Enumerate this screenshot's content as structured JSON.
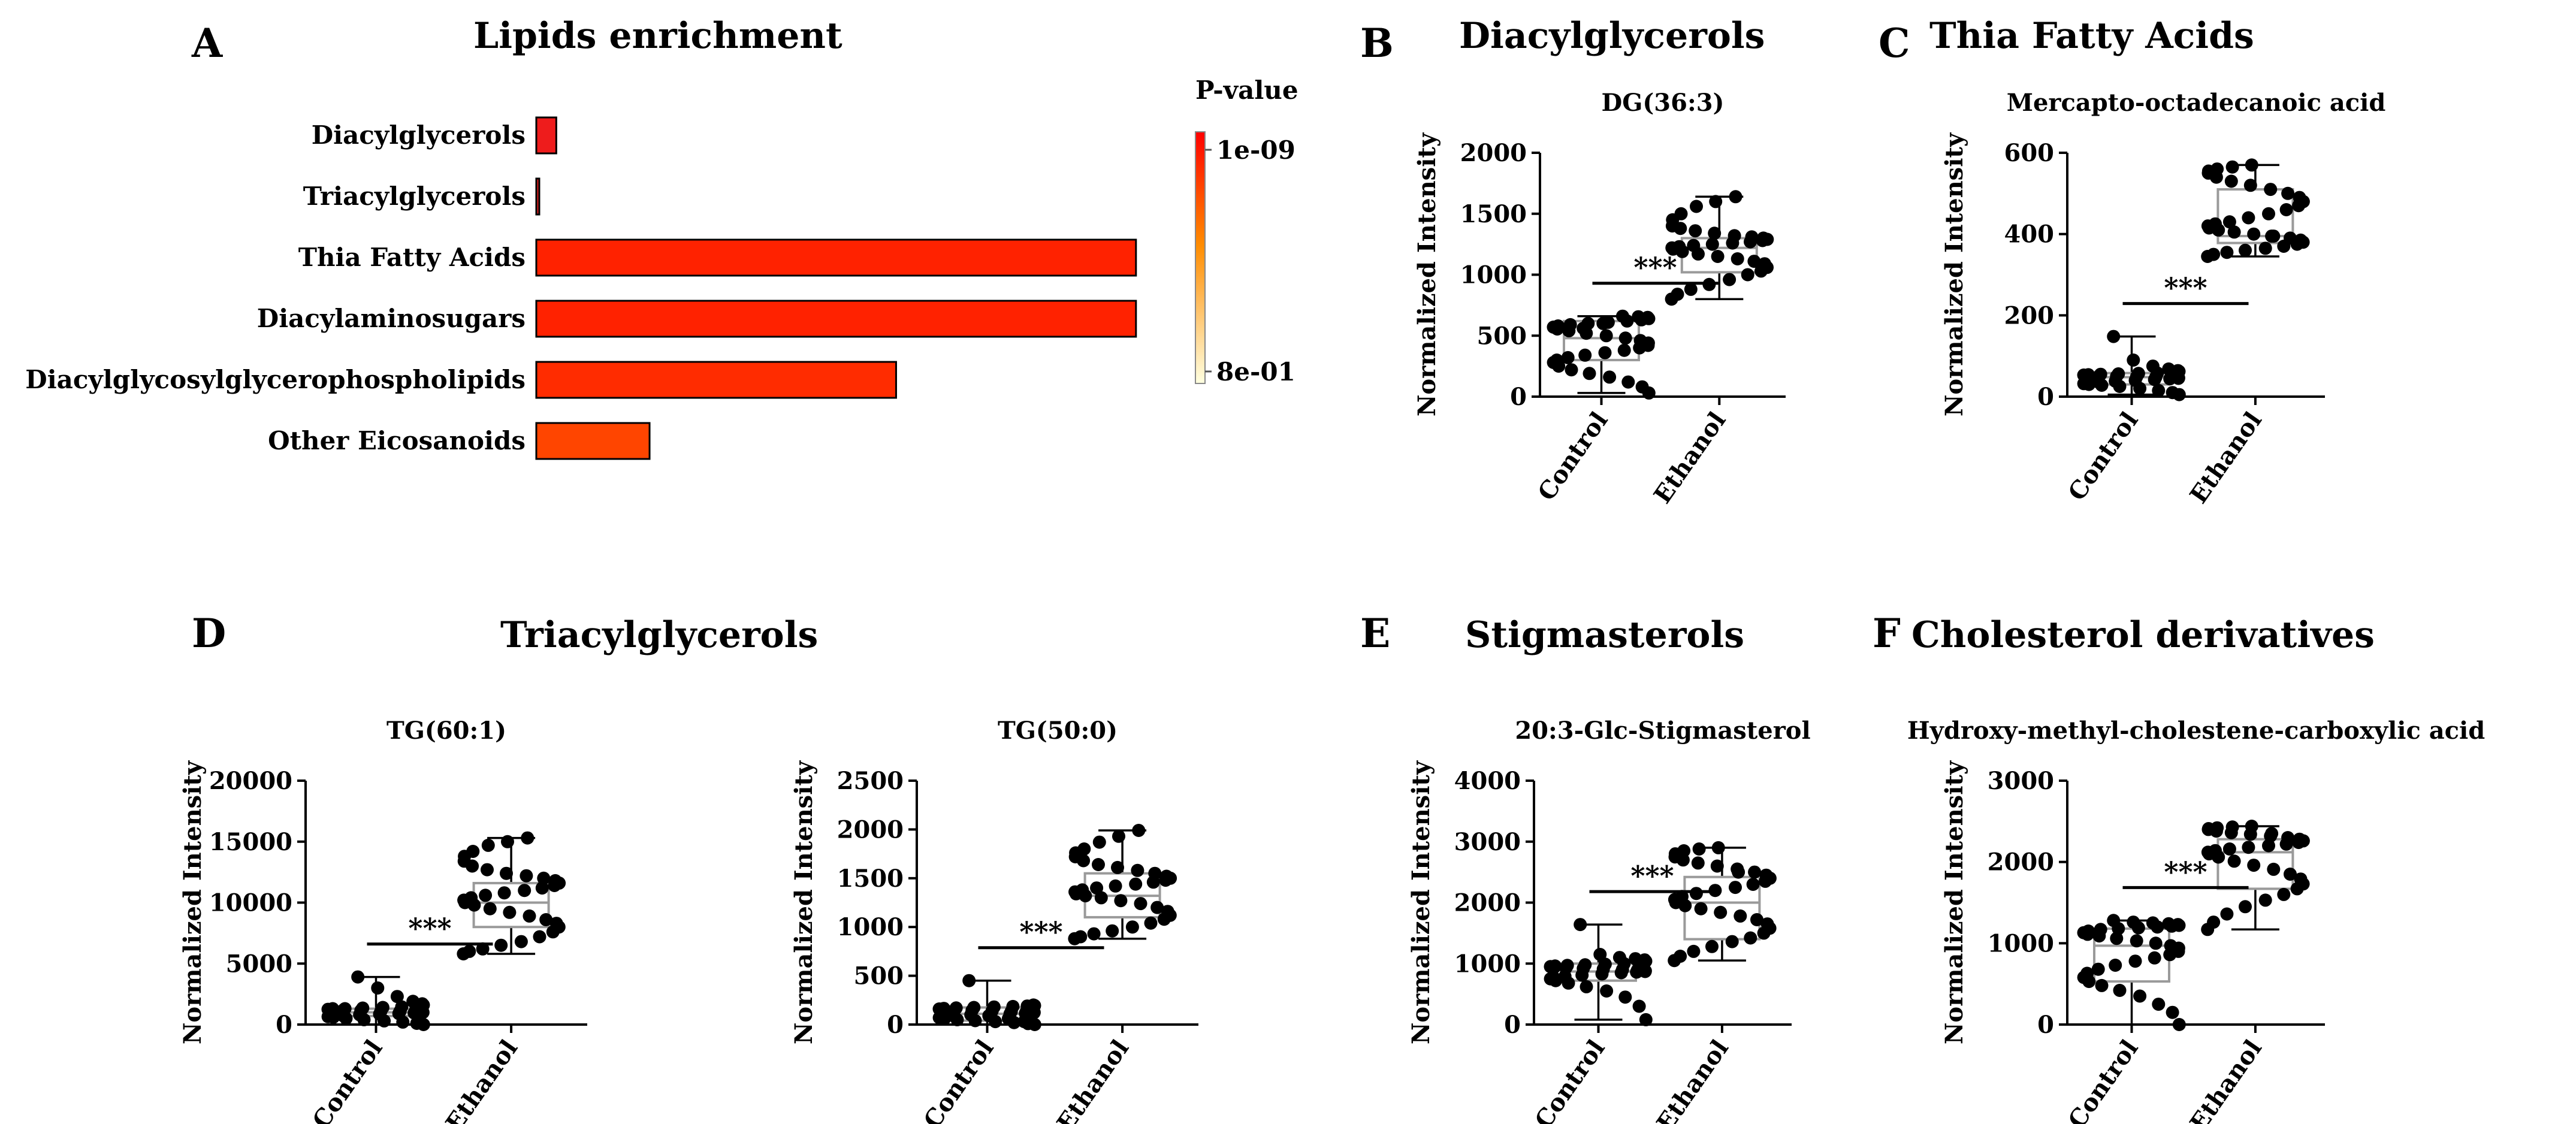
{
  "panels": [
    {
      "id": "A",
      "label": "A",
      "title": "Lipids enrichment"
    },
    {
      "id": "B",
      "label": "B",
      "title": "Diacylglycerols"
    },
    {
      "id": "C",
      "label": "C",
      "title": "Thia Fatty Acids"
    },
    {
      "id": "D",
      "label": "D",
      "title": "Triacylglycerols"
    },
    {
      "id": "E",
      "label": "E",
      "title": "Stigmasterols"
    },
    {
      "id": "F",
      "label": "F",
      "title": "Cholesterol derivatives"
    }
  ],
  "colors": {
    "high": "#ff0000",
    "mid": "#ff8c00",
    "low": "#ffffe0",
    "box": "#9a9a9a",
    "dot": "#000000"
  },
  "chart_data": [
    {
      "id": "A",
      "type": "bar",
      "orientation": "horizontal",
      "title": "Lipids enrichment",
      "categories": [
        "Diacylglycerols",
        "Triacylglycerols",
        "Thia Fatty Acids",
        "Diacylaminosugars",
        "Diacylglycosylglycerophospholipids",
        "Other Eicosanoids"
      ],
      "values": [
        1.5,
        0.2,
        45.0,
        45.0,
        27.0,
        8.5
      ],
      "xlim": [
        0,
        50
      ],
      "bar_colors": [
        "#ee1c1c",
        "#dd1f1f",
        "#ff2200",
        "#ff2200",
        "#ff2c00",
        "#ff4500"
      ],
      "legend": {
        "title": "P-value",
        "max_label": "1e-09",
        "min_label": "8e-01",
        "placement": "right"
      }
    },
    {
      "id": "B",
      "type": "box-scatter",
      "subtitle": "DG(36:3)",
      "ylabel": "Normalized Intensity",
      "categories": [
        "Control",
        "Ethanol"
      ],
      "ylim": [
        0,
        2000
      ],
      "yticks": [
        0,
        500,
        1000,
        1500,
        2000
      ],
      "boxes": [
        {
          "min": 30,
          "q1": 300,
          "median": 480,
          "q3": 620,
          "max": 660
        },
        {
          "min": 800,
          "q1": 1020,
          "median": 1220,
          "q3": 1300,
          "max": 1640
        }
      ],
      "points": [
        [
          30,
          80,
          120,
          160,
          190,
          220,
          250,
          280,
          300,
          320,
          340,
          360,
          380,
          400,
          420,
          440,
          460,
          480,
          500,
          520,
          540,
          555,
          570,
          580,
          590,
          600,
          610,
          620,
          630,
          640,
          650,
          655,
          660,
          600,
          560
        ],
        [
          800,
          840,
          880,
          920,
          960,
          1000,
          1030,
          1060,
          1090,
          1110,
          1130,
          1150,
          1170,
          1190,
          1210,
          1220,
          1230,
          1240,
          1250,
          1260,
          1270,
          1280,
          1290,
          1300,
          1310,
          1320,
          1340,
          1360,
          1380,
          1400,
          1450,
          1500,
          1560,
          1600,
          1640
        ]
      ],
      "significance": "***"
    },
    {
      "id": "C",
      "type": "box-scatter",
      "subtitle": "Mercapto-octadecanoic acid",
      "ylabel": "Normalized Intensity",
      "categories": [
        "Control",
        "Ethanol"
      ],
      "ylim": [
        0,
        600
      ],
      "yticks": [
        0,
        200,
        400,
        600
      ],
      "boxes": [
        {
          "min": 5,
          "q1": 30,
          "median": 48,
          "q3": 58,
          "max": 148
        },
        {
          "min": 345,
          "q1": 378,
          "median": 395,
          "q3": 510,
          "max": 570
        }
      ],
      "points": [
        [
          5,
          10,
          15,
          20,
          25,
          28,
          30,
          32,
          34,
          36,
          38,
          40,
          42,
          44,
          45,
          46,
          47,
          48,
          49,
          50,
          51,
          52,
          53,
          54,
          55,
          56,
          57,
          58,
          60,
          62,
          64,
          68,
          75,
          90,
          148
        ],
        [
          345,
          350,
          355,
          360,
          365,
          370,
          375,
          380,
          385,
          390,
          395,
          400,
          405,
          410,
          415,
          420,
          425,
          430,
          440,
          450,
          460,
          470,
          480,
          490,
          500,
          510,
          520,
          530,
          540,
          550,
          555,
          560,
          565,
          570,
          395
        ]
      ],
      "significance": "***"
    },
    {
      "id": "D1",
      "type": "box-scatter",
      "subtitle": "TG(60:1)",
      "ylabel": "Normalized Intensity",
      "categories": [
        "Control",
        "Ethanol"
      ],
      "ylim": [
        0,
        20000
      ],
      "yticks": [
        0,
        5000,
        10000,
        15000,
        20000
      ],
      "boxes": [
        {
          "min": 0,
          "q1": 700,
          "median": 1000,
          "q3": 1300,
          "max": 3900
        },
        {
          "min": 5800,
          "q1": 8000,
          "median": 10000,
          "q3": 11600,
          "max": 15300
        }
      ],
      "points": [
        [
          0,
          100,
          200,
          300,
          400,
          500,
          600,
          650,
          700,
          750,
          800,
          850,
          900,
          950,
          1000,
          1000,
          1050,
          1100,
          1100,
          1150,
          1200,
          1200,
          1250,
          1300,
          1300,
          1350,
          1400,
          1450,
          1500,
          1600,
          1700,
          1900,
          2300,
          3000,
          3900
        ],
        [
          5800,
          6000,
          6200,
          6500,
          6800,
          7200,
          7600,
          8000,
          8300,
          8600,
          8900,
          9200,
          9500,
          9800,
          10000,
          10200,
          10400,
          10600,
          10800,
          11000,
          11200,
          11400,
          11600,
          11800,
          12000,
          12200,
          12400,
          12700,
          13000,
          13400,
          13800,
          14200,
          14700,
          15000,
          15300
        ]
      ],
      "significance": "***"
    },
    {
      "id": "D2",
      "type": "box-scatter",
      "subtitle": "TG(50:0)",
      "ylabel": "Normalized Intensity",
      "categories": [
        "Control",
        "Ethanol"
      ],
      "ylim": [
        0,
        2500
      ],
      "yticks": [
        0,
        500,
        1000,
        1500,
        2000,
        2500
      ],
      "boxes": [
        {
          "min": 0,
          "q1": 40,
          "median": 110,
          "q3": 175,
          "max": 450
        },
        {
          "min": 880,
          "q1": 1100,
          "median": 1320,
          "q3": 1550,
          "max": 1990
        }
      ],
      "points": [
        [
          0,
          10,
          20,
          30,
          40,
          50,
          60,
          70,
          80,
          90,
          100,
          105,
          110,
          115,
          120,
          125,
          130,
          135,
          140,
          145,
          150,
          155,
          160,
          165,
          170,
          175,
          180,
          185,
          190,
          195,
          200,
          30,
          60,
          90,
          450
        ],
        [
          880,
          900,
          930,
          960,
          1000,
          1040,
          1080,
          1120,
          1160,
          1200,
          1240,
          1270,
          1300,
          1320,
          1340,
          1360,
          1380,
          1400,
          1420,
          1440,
          1460,
          1480,
          1500,
          1520,
          1550,
          1580,
          1610,
          1640,
          1680,
          1720,
          1760,
          1800,
          1870,
          1930,
          1990
        ]
      ],
      "significance": "***"
    },
    {
      "id": "E",
      "type": "box-scatter",
      "subtitle": "20:3-Glc-Stigmasterol",
      "ylabel": "Normalized Intensity",
      "categories": [
        "Control",
        "Ethanol"
      ],
      "ylim": [
        0,
        4000
      ],
      "yticks": [
        0,
        1000,
        2000,
        3000,
        4000
      ],
      "boxes": [
        {
          "min": 80,
          "q1": 720,
          "median": 870,
          "q3": 1000,
          "max": 1640
        },
        {
          "min": 1050,
          "q1": 1400,
          "median": 2000,
          "q3": 2420,
          "max": 2900
        }
      ],
      "points": [
        [
          80,
          300,
          450,
          550,
          620,
          680,
          720,
          750,
          770,
          790,
          810,
          830,
          850,
          860,
          870,
          880,
          890,
          900,
          910,
          920,
          930,
          940,
          950,
          960,
          970,
          980,
          990,
          1000,
          1020,
          1040,
          1060,
          1080,
          1100,
          1150,
          1640
        ],
        [
          1050,
          1120,
          1200,
          1280,
          1360,
          1420,
          1500,
          1580,
          1650,
          1720,
          1780,
          1840,
          1900,
          1950,
          2000,
          2050,
          2100,
          2150,
          2200,
          2250,
          2300,
          2350,
          2400,
          2450,
          2500,
          2550,
          2600,
          2650,
          2700,
          2750,
          2800,
          2850,
          2880,
          2900,
          2500
        ]
      ],
      "significance": "***"
    },
    {
      "id": "F",
      "type": "box-scatter",
      "subtitle": "Hydroxy-methyl-cholestene-carboxylic acid",
      "ylabel": "Normalized Intensity",
      "categories": [
        "Control",
        "Ethanol"
      ],
      "ylim": [
        0,
        3000
      ],
      "yticks": [
        0,
        1000,
        2000,
        3000
      ],
      "boxes": [
        {
          "min": 0,
          "q1": 530,
          "median": 970,
          "q3": 1180,
          "max": 1280
        },
        {
          "min": 1170,
          "q1": 1670,
          "median": 2120,
          "q3": 2280,
          "max": 2440
        }
      ],
      "points": [
        [
          0,
          150,
          250,
          350,
          420,
          480,
          530,
          580,
          630,
          680,
          730,
          780,
          820,
          860,
          900,
          940,
          970,
          1000,
          1030,
          1060,
          1090,
          1110,
          1130,
          1150,
          1170,
          1180,
          1190,
          1200,
          1210,
          1220,
          1230,
          1240,
          1250,
          1260,
          1280
        ],
        [
          1170,
          1260,
          1360,
          1450,
          1530,
          1600,
          1670,
          1730,
          1790,
          1850,
          1910,
          1960,
          2010,
          2060,
          2100,
          2120,
          2140,
          2160,
          2180,
          2200,
          2220,
          2240,
          2260,
          2280,
          2300,
          2320,
          2340,
          2360,
          2380,
          2400,
          2410,
          2420,
          2430,
          2440,
          2350
        ]
      ],
      "significance": "***"
    }
  ]
}
